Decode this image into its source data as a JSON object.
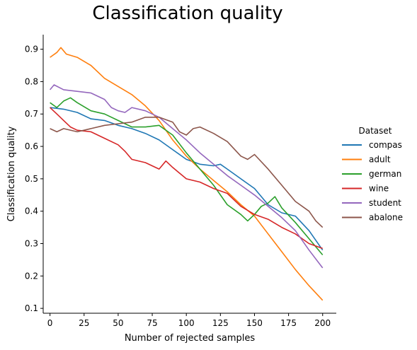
{
  "chart_data": {
    "type": "line",
    "title": "Classification quality",
    "xlabel": "Number of rejected samples",
    "ylabel": "Classification quality",
    "xlim": [
      -5,
      210
    ],
    "ylim": [
      0.085,
      0.945
    ],
    "xticks": [
      0,
      25,
      50,
      75,
      100,
      125,
      150,
      175,
      200
    ],
    "yticks": [
      0.1,
      0.2,
      0.3,
      0.4,
      0.5,
      0.6,
      0.7,
      0.8,
      0.9
    ],
    "grid": false,
    "legend_title": "Dataset",
    "legend_position": "right",
    "series": [
      {
        "name": "compas",
        "color": "#1f77b4",
        "x": [
          0,
          10,
          20,
          30,
          40,
          50,
          60,
          70,
          80,
          90,
          100,
          110,
          120,
          125,
          130,
          140,
          150,
          160,
          170,
          180,
          190,
          200
        ],
        "y": [
          0.72,
          0.715,
          0.705,
          0.685,
          0.68,
          0.665,
          0.655,
          0.64,
          0.62,
          0.59,
          0.56,
          0.545,
          0.54,
          0.545,
          0.53,
          0.5,
          0.47,
          0.42,
          0.395,
          0.385,
          0.34,
          0.28
        ]
      },
      {
        "name": "adult",
        "color": "#ff7f0e",
        "x": [
          0,
          5,
          8,
          12,
          20,
          30,
          40,
          50,
          60,
          70,
          80,
          90,
          100,
          110,
          120,
          130,
          140,
          150,
          160,
          170,
          180,
          190,
          200
        ],
        "y": [
          0.875,
          0.89,
          0.905,
          0.885,
          0.875,
          0.85,
          0.81,
          0.785,
          0.76,
          0.725,
          0.68,
          0.62,
          0.57,
          0.53,
          0.495,
          0.46,
          0.42,
          0.385,
          0.33,
          0.275,
          0.22,
          0.17,
          0.125
        ]
      },
      {
        "name": "german",
        "color": "#2ca02c",
        "x": [
          0,
          5,
          10,
          15,
          20,
          30,
          40,
          50,
          60,
          70,
          80,
          90,
          100,
          110,
          120,
          130,
          140,
          145,
          150,
          155,
          160,
          165,
          170,
          180,
          190,
          200
        ],
        "y": [
          0.735,
          0.72,
          0.74,
          0.75,
          0.735,
          0.71,
          0.7,
          0.68,
          0.66,
          0.66,
          0.665,
          0.635,
          0.58,
          0.53,
          0.48,
          0.42,
          0.39,
          0.37,
          0.39,
          0.415,
          0.425,
          0.445,
          0.41,
          0.365,
          0.315,
          0.265
        ]
      },
      {
        "name": "wine",
        "color": "#d62728",
        "x": [
          0,
          5,
          10,
          15,
          20,
          30,
          40,
          50,
          55,
          60,
          70,
          80,
          85,
          90,
          100,
          110,
          120,
          130,
          140,
          150,
          160,
          170,
          180,
          190,
          200
        ],
        "y": [
          0.72,
          0.7,
          0.68,
          0.66,
          0.65,
          0.645,
          0.625,
          0.605,
          0.585,
          0.56,
          0.55,
          0.53,
          0.555,
          0.535,
          0.5,
          0.49,
          0.47,
          0.455,
          0.415,
          0.39,
          0.375,
          0.35,
          0.33,
          0.3,
          0.285
        ]
      },
      {
        "name": "student",
        "color": "#9467bd",
        "x": [
          0,
          3,
          10,
          20,
          30,
          40,
          45,
          50,
          55,
          60,
          70,
          80,
          90,
          100,
          110,
          120,
          130,
          140,
          150,
          160,
          170,
          180,
          190,
          200
        ],
        "y": [
          0.775,
          0.79,
          0.775,
          0.77,
          0.765,
          0.745,
          0.72,
          0.71,
          0.705,
          0.72,
          0.71,
          0.69,
          0.655,
          0.62,
          0.58,
          0.545,
          0.51,
          0.48,
          0.45,
          0.415,
          0.38,
          0.34,
          0.28,
          0.225
        ]
      },
      {
        "name": "abalone",
        "color": "#8c564b",
        "x": [
          0,
          5,
          10,
          20,
          30,
          40,
          50,
          60,
          70,
          80,
          90,
          95,
          100,
          105,
          110,
          120,
          130,
          140,
          145,
          150,
          160,
          170,
          180,
          190,
          195,
          200
        ],
        "y": [
          0.655,
          0.645,
          0.655,
          0.645,
          0.655,
          0.665,
          0.67,
          0.675,
          0.69,
          0.69,
          0.675,
          0.645,
          0.635,
          0.655,
          0.66,
          0.64,
          0.615,
          0.57,
          0.56,
          0.575,
          0.53,
          0.48,
          0.43,
          0.4,
          0.37,
          0.35
        ]
      }
    ]
  }
}
